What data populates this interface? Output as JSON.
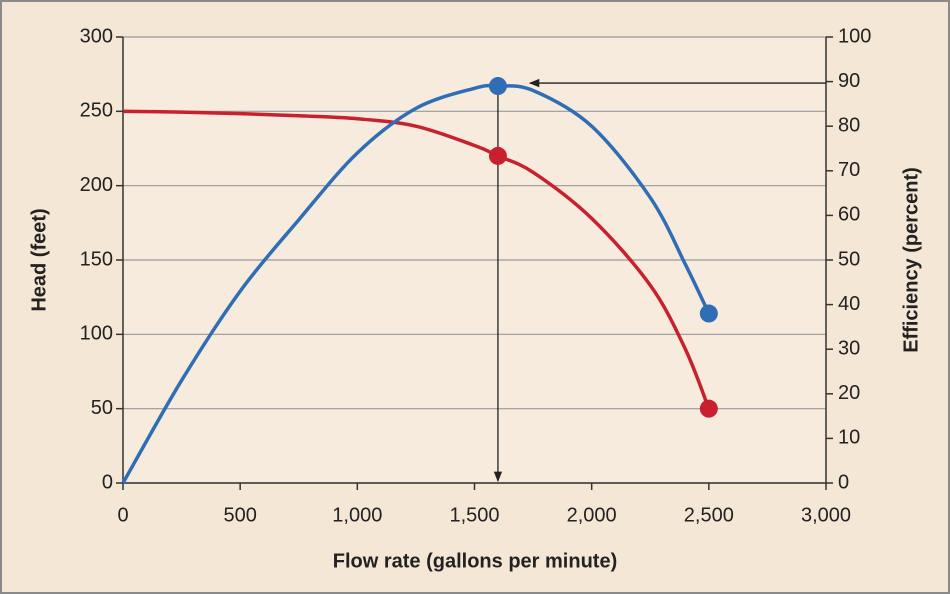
{
  "chart_data": {
    "type": "line",
    "x_label": "Flow rate (gallons per minute)",
    "y_label": "Head (feet)",
    "y2_label": "Efficiency (percent)",
    "x": [
      0,
      250,
      500,
      750,
      1000,
      1250,
      1500,
      1600,
      1750,
      2000,
      2250,
      2400,
      2500
    ],
    "series": [
      {
        "name": "Head",
        "color": "#c8202f",
        "values": [
          250,
          249.5,
          248.5,
          247,
          245,
          240,
          227,
          220,
          209,
          178,
          133,
          90,
          50
        ],
        "markers": {
          "x": [
            1600,
            2500
          ],
          "values": [
            220,
            50
          ]
        }
      },
      {
        "name": "Efficiency",
        "color": "#2f6db5",
        "axis": "y2",
        "values": [
          0,
          23,
          43,
          59,
          74,
          84,
          88.5,
          89,
          88,
          80,
          64,
          49,
          38
        ],
        "markers": {
          "x": [
            1600,
            2500
          ],
          "values": [
            89,
            38
          ]
        }
      }
    ],
    "xlim": [
      0,
      3000
    ],
    "xticks": [
      0,
      500,
      {
        "value": 1000,
        "label": "1,000"
      },
      {
        "value": 1500,
        "label": "1,500"
      },
      {
        "value": 2000,
        "label": "2,000"
      },
      {
        "value": 2500,
        "label": "2,500"
      },
      {
        "value": 3000,
        "label": "3,000"
      }
    ],
    "ylim": [
      0,
      300
    ],
    "yticks": [
      0,
      50,
      100,
      150,
      200,
      250,
      300
    ],
    "y2lim": [
      0,
      100
    ],
    "y2ticks": [
      0,
      10,
      20,
      30,
      40,
      50,
      60,
      70,
      80,
      90,
      100
    ],
    "grid": true
  }
}
